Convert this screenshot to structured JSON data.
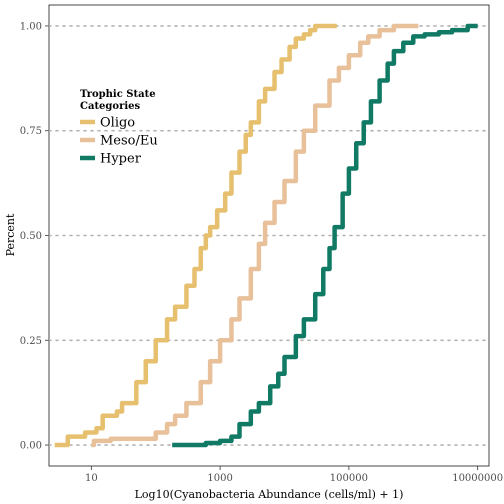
{
  "chart_data": {
    "type": "line",
    "subtype": "empirical-cdf-step",
    "xlabel": "Log10(Cyanobacteria Abundance (cells/ml) + 1)",
    "ylabel": "Percent",
    "x_scale": "log10",
    "xlim": [
      2.2,
      15000000
    ],
    "ylim": [
      -0.05,
      1.05
    ],
    "x_ticks": [
      {
        "value": 10,
        "label": "10"
      },
      {
        "value": 1000,
        "label": "1000"
      },
      {
        "value": 100000,
        "label": "100000"
      },
      {
        "value": 10000000,
        "label": "10000000"
      }
    ],
    "y_ticks": [
      {
        "value": 0,
        "label": "0.00"
      },
      {
        "value": 0.25,
        "label": "0.25"
      },
      {
        "value": 0.5,
        "label": "0.50"
      },
      {
        "value": 0.75,
        "label": "0.75"
      },
      {
        "value": 1,
        "label": "1.00"
      }
    ],
    "gridlines": "horizontal dotted at major y ticks",
    "legend": {
      "title": "Trophic State\nCategories",
      "position": "top-left inside"
    },
    "series": [
      {
        "name": "Oligo",
        "color": "#e6c06e",
        "points": [
          [
            2.7,
            0.0
          ],
          [
            4,
            0.0
          ],
          [
            4.3,
            0.02
          ],
          [
            7,
            0.02
          ],
          [
            8,
            0.03
          ],
          [
            12,
            0.04
          ],
          [
            15,
            0.07
          ],
          [
            25,
            0.08
          ],
          [
            30,
            0.1
          ],
          [
            50,
            0.15
          ],
          [
            70,
            0.2
          ],
          [
            100,
            0.25
          ],
          [
            150,
            0.3
          ],
          [
            200,
            0.33
          ],
          [
            300,
            0.38
          ],
          [
            400,
            0.42
          ],
          [
            500,
            0.47
          ],
          [
            600,
            0.5
          ],
          [
            700,
            0.52
          ],
          [
            900,
            0.56
          ],
          [
            1200,
            0.6
          ],
          [
            1500,
            0.65
          ],
          [
            2000,
            0.7
          ],
          [
            2500,
            0.74
          ],
          [
            3000,
            0.77
          ],
          [
            4000,
            0.82
          ],
          [
            5000,
            0.85
          ],
          [
            7000,
            0.89
          ],
          [
            9000,
            0.92
          ],
          [
            12000,
            0.95
          ],
          [
            15000,
            0.97
          ],
          [
            20000,
            0.98
          ],
          [
            25000,
            0.99
          ],
          [
            30000,
            1.0
          ],
          [
            65000,
            1.0
          ]
        ]
      },
      {
        "name": "Meso/Eu",
        "color": "#e8c09a",
        "points": [
          [
            10,
            0.0
          ],
          [
            11,
            0.01
          ],
          [
            15,
            0.01
          ],
          [
            20,
            0.015
          ],
          [
            70,
            0.015
          ],
          [
            100,
            0.03
          ],
          [
            150,
            0.05
          ],
          [
            200,
            0.07
          ],
          [
            300,
            0.1
          ],
          [
            500,
            0.15
          ],
          [
            700,
            0.2
          ],
          [
            1000,
            0.25
          ],
          [
            1500,
            0.3
          ],
          [
            2000,
            0.35
          ],
          [
            3000,
            0.42
          ],
          [
            4000,
            0.48
          ],
          [
            5000,
            0.53
          ],
          [
            7000,
            0.58
          ],
          [
            10000,
            0.63
          ],
          [
            15000,
            0.7
          ],
          [
            20000,
            0.75
          ],
          [
            30000,
            0.81
          ],
          [
            50000,
            0.87
          ],
          [
            70000,
            0.9
          ],
          [
            100000,
            0.93
          ],
          [
            150000,
            0.96
          ],
          [
            200000,
            0.975
          ],
          [
            300000,
            0.99
          ],
          [
            500000,
            1.0
          ],
          [
            1200000,
            1.0
          ]
        ]
      },
      {
        "name": "Hyper",
        "color": "#117a65",
        "points": [
          [
            180,
            0.0
          ],
          [
            500,
            0.0
          ],
          [
            600,
            0.005
          ],
          [
            1000,
            0.01
          ],
          [
            1500,
            0.02
          ],
          [
            2000,
            0.05
          ],
          [
            3000,
            0.08
          ],
          [
            4000,
            0.1
          ],
          [
            6000,
            0.14
          ],
          [
            8000,
            0.17
          ],
          [
            10000,
            0.21
          ],
          [
            15000,
            0.26
          ],
          [
            20000,
            0.3
          ],
          [
            30000,
            0.36
          ],
          [
            40000,
            0.42
          ],
          [
            50000,
            0.47
          ],
          [
            60000,
            0.52
          ],
          [
            80000,
            0.6
          ],
          [
            100000,
            0.66
          ],
          [
            130000,
            0.72
          ],
          [
            170000,
            0.77
          ],
          [
            220000,
            0.82
          ],
          [
            300000,
            0.87
          ],
          [
            400000,
            0.91
          ],
          [
            500000,
            0.94
          ],
          [
            700000,
            0.96
          ],
          [
            1000000,
            0.975
          ],
          [
            1500000,
            0.98
          ],
          [
            2500000,
            0.985
          ],
          [
            4000000,
            0.99
          ],
          [
            7000000,
            1.0
          ],
          [
            10000000,
            1.0
          ]
        ]
      }
    ]
  }
}
